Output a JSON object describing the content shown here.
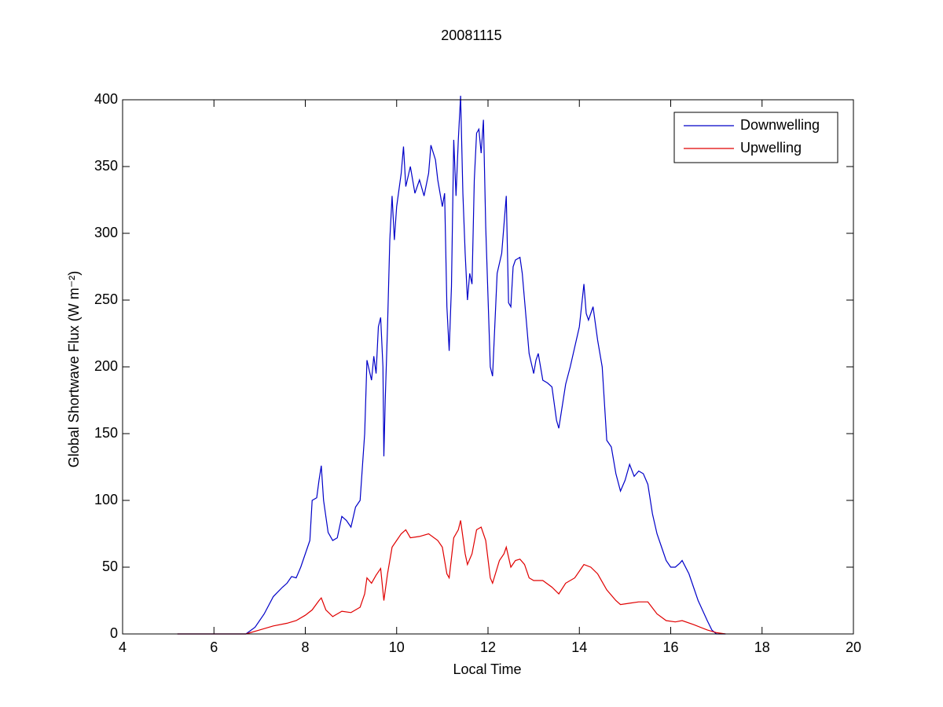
{
  "chart_data": {
    "type": "line",
    "title": "20081115",
    "xlabel": "Local Time",
    "ylabel": "Global Shortwave Flux (W m⁻²)",
    "xlim": [
      4,
      20
    ],
    "xticks": [
      4,
      6,
      8,
      10,
      12,
      14,
      16,
      18,
      20
    ],
    "ylim": [
      0,
      400
    ],
    "yticks": [
      0,
      50,
      100,
      150,
      200,
      250,
      300,
      350,
      400
    ],
    "legend": "northeast",
    "grid": false,
    "series": [
      {
        "name": "Downwelling",
        "color": "#0000c8",
        "x": [
          5.2,
          6.7,
          6.9,
          7.1,
          7.3,
          7.5,
          7.6,
          7.7,
          7.8,
          7.9,
          8.0,
          8.1,
          8.15,
          8.25,
          8.3,
          8.35,
          8.4,
          8.5,
          8.6,
          8.7,
          8.8,
          8.9,
          9.0,
          9.1,
          9.2,
          9.3,
          9.35,
          9.45,
          9.5,
          9.55,
          9.6,
          9.65,
          9.7,
          9.72,
          9.75,
          9.8,
          9.85,
          9.9,
          9.95,
          10.0,
          10.1,
          10.15,
          10.2,
          10.3,
          10.4,
          10.5,
          10.6,
          10.7,
          10.75,
          10.85,
          10.9,
          11.0,
          11.05,
          11.1,
          11.15,
          11.2,
          11.25,
          11.3,
          11.35,
          11.4,
          11.45,
          11.5,
          11.55,
          11.6,
          11.65,
          11.7,
          11.75,
          11.8,
          11.85,
          11.9,
          11.95,
          12.05,
          12.1,
          12.2,
          12.3,
          12.4,
          12.45,
          12.5,
          12.55,
          12.6,
          12.7,
          12.75,
          12.8,
          12.9,
          13.0,
          13.05,
          13.1,
          13.2,
          13.3,
          13.4,
          13.5,
          13.55,
          13.6,
          13.7,
          13.8,
          13.9,
          14.0,
          14.1,
          14.15,
          14.2,
          14.3,
          14.4,
          14.5,
          14.6,
          14.7,
          14.8,
          14.9,
          15.0,
          15.1,
          15.2,
          15.3,
          15.4,
          15.5,
          15.6,
          15.7,
          15.8,
          15.9,
          16.0,
          16.1,
          16.2,
          16.25,
          16.4,
          16.5,
          16.6,
          16.8,
          16.9,
          17.0,
          17.2
        ],
        "values": [
          0,
          0,
          5,
          15,
          28,
          35,
          38,
          43,
          42,
          50,
          60,
          70,
          100,
          102,
          115,
          126,
          100,
          76,
          70,
          72,
          88,
          85,
          80,
          95,
          100,
          150,
          205,
          190,
          208,
          195,
          230,
          237,
          200,
          133,
          175,
          230,
          295,
          328,
          295,
          320,
          345,
          365,
          335,
          350,
          330,
          340,
          328,
          345,
          366,
          355,
          340,
          320,
          330,
          245,
          212,
          260,
          370,
          328,
          370,
          403,
          330,
          285,
          250,
          270,
          262,
          340,
          375,
          378,
          360,
          385,
          305,
          200,
          193,
          270,
          285,
          328,
          248,
          245,
          275,
          280,
          282,
          270,
          250,
          210,
          195,
          205,
          210,
          190,
          188,
          185,
          160,
          154,
          165,
          187,
          200,
          215,
          230,
          262,
          240,
          235,
          245,
          220,
          200,
          145,
          140,
          120,
          107,
          115,
          127,
          118,
          122,
          120,
          112,
          90,
          75,
          65,
          55,
          50,
          50,
          53,
          55,
          45,
          35,
          25,
          10,
          3,
          0,
          0
        ]
      },
      {
        "name": "Upwelling",
        "color": "#e00000",
        "x": [
          5.2,
          6.7,
          7.0,
          7.3,
          7.6,
          7.8,
          8.0,
          8.15,
          8.3,
          8.35,
          8.45,
          8.6,
          8.8,
          9.0,
          9.2,
          9.3,
          9.35,
          9.45,
          9.55,
          9.65,
          9.72,
          9.8,
          9.9,
          10.0,
          10.1,
          10.2,
          10.3,
          10.5,
          10.7,
          10.9,
          11.0,
          11.1,
          11.15,
          11.25,
          11.35,
          11.4,
          11.5,
          11.55,
          11.65,
          11.75,
          11.85,
          11.95,
          12.05,
          12.1,
          12.25,
          12.35,
          12.4,
          12.5,
          12.6,
          12.7,
          12.8,
          12.9,
          13.0,
          13.2,
          13.4,
          13.55,
          13.7,
          13.9,
          14.1,
          14.25,
          14.4,
          14.6,
          14.8,
          14.9,
          15.1,
          15.3,
          15.5,
          15.7,
          15.9,
          16.1,
          16.25,
          16.5,
          16.8,
          17.0,
          17.2
        ],
        "values": [
          0,
          0,
          3,
          6,
          8,
          10,
          14,
          18,
          25,
          27,
          18,
          13,
          17,
          16,
          20,
          30,
          42,
          38,
          44,
          49,
          25,
          45,
          65,
          70,
          75,
          78,
          72,
          73,
          75,
          70,
          65,
          45,
          42,
          72,
          78,
          85,
          60,
          52,
          60,
          78,
          80,
          70,
          42,
          38,
          55,
          60,
          65,
          50,
          55,
          56,
          52,
          42,
          40,
          40,
          35,
          30,
          38,
          42,
          52,
          50,
          45,
          33,
          25,
          22,
          23,
          24,
          24,
          15,
          10,
          9,
          10,
          7,
          3,
          1,
          0
        ]
      }
    ]
  }
}
